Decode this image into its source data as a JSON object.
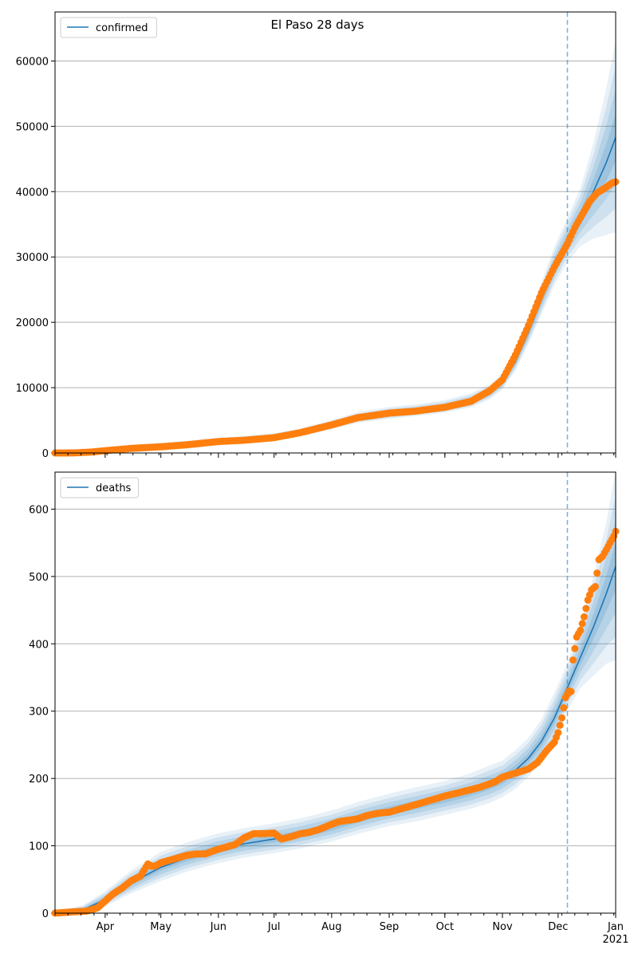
{
  "title": "El Paso 28 days",
  "colors": {
    "model_line": "#1f77b4",
    "band": "#1f77b4",
    "observed": "#ff7f0e",
    "grid": "#b0b0b0",
    "forecast_line": "#1f77b4"
  },
  "chart_data": [
    {
      "type": "line",
      "name": "confirmed",
      "legend": "confirmed",
      "legend_position": "top-left",
      "grid": "y",
      "x_range": [
        "2020-03-05",
        "2021-01-01"
      ],
      "ylim": [
        0,
        67500
      ],
      "yticks": [
        0,
        10000,
        20000,
        30000,
        40000,
        50000,
        60000
      ],
      "forecast_start": "2020-12-06",
      "model": {
        "x": [
          "2020-03-05",
          "2020-03-20",
          "2020-04-01",
          "2020-04-15",
          "2020-05-01",
          "2020-05-15",
          "2020-06-01",
          "2020-06-15",
          "2020-07-01",
          "2020-07-15",
          "2020-08-01",
          "2020-08-15",
          "2020-09-01",
          "2020-09-15",
          "2020-10-01",
          "2020-10-15",
          "2020-10-25",
          "2020-11-01",
          "2020-11-08",
          "2020-11-15",
          "2020-11-22",
          "2020-11-29",
          "2020-12-06",
          "2020-12-13",
          "2020-12-20",
          "2020-12-27",
          "2021-01-01"
        ],
        "y": [
          0,
          150,
          400,
          700,
          1000,
          1300,
          1700,
          2000,
          2400,
          3000,
          4200,
          5300,
          6000,
          6400,
          7000,
          7900,
          9200,
          10800,
          14000,
          18500,
          23500,
          28500,
          32500,
          36000,
          40000,
          44500,
          48300
        ],
        "band_rel": [
          0.5,
          0.5,
          0.4,
          0.35,
          0.3,
          0.25,
          0.2,
          0.18,
          0.16,
          0.15,
          0.14,
          0.13,
          0.13,
          0.12,
          0.12,
          0.12,
          0.11,
          0.1,
          0.1,
          0.1,
          0.1,
          0.1,
          0.1,
          0.12,
          0.18,
          0.25,
          0.3
        ]
      },
      "observed": {
        "x": [
          "2020-03-05",
          "2020-03-15",
          "2020-03-25",
          "2020-04-01",
          "2020-04-15",
          "2020-05-01",
          "2020-05-15",
          "2020-06-01",
          "2020-06-15",
          "2020-07-01",
          "2020-07-15",
          "2020-08-01",
          "2020-08-15",
          "2020-09-01",
          "2020-09-15",
          "2020-10-01",
          "2020-10-15",
          "2020-10-25",
          "2020-11-01",
          "2020-11-08",
          "2020-11-15",
          "2020-11-22",
          "2020-11-29",
          "2020-12-03",
          "2020-12-06",
          "2020-12-10",
          "2020-12-14",
          "2020-12-18",
          "2020-12-22",
          "2020-12-26",
          "2020-12-30",
          "2021-01-01"
        ],
        "y": [
          0,
          10,
          150,
          350,
          700,
          950,
          1250,
          1750,
          1950,
          2350,
          3100,
          4300,
          5400,
          6100,
          6400,
          7000,
          7900,
          9500,
          11200,
          15000,
          19500,
          24500,
          28500,
          30500,
          32000,
          34500,
          36500,
          38500,
          39800,
          40500,
          41300,
          41500
        ]
      }
    },
    {
      "type": "line",
      "name": "deaths",
      "legend": "deaths",
      "legend_position": "top-left",
      "grid": "y",
      "x_range": [
        "2020-03-05",
        "2021-01-01"
      ],
      "ylim": [
        0,
        655
      ],
      "yticks": [
        0,
        100,
        200,
        300,
        400,
        500,
        600
      ],
      "forecast_start": "2020-12-06",
      "model": {
        "x": [
          "2020-03-05",
          "2020-03-20",
          "2020-04-01",
          "2020-04-15",
          "2020-05-01",
          "2020-05-15",
          "2020-06-01",
          "2020-06-15",
          "2020-07-01",
          "2020-07-15",
          "2020-08-01",
          "2020-08-15",
          "2020-09-01",
          "2020-09-15",
          "2020-10-01",
          "2020-10-15",
          "2020-10-25",
          "2020-11-01",
          "2020-11-08",
          "2020-11-15",
          "2020-11-22",
          "2020-11-29",
          "2020-12-06",
          "2020-12-13",
          "2020-12-20",
          "2020-12-27",
          "2021-01-01"
        ],
        "y": [
          0,
          5,
          20,
          45,
          68,
          82,
          95,
          103,
          110,
          117,
          128,
          140,
          152,
          160,
          170,
          180,
          190,
          198,
          212,
          230,
          255,
          290,
          335,
          380,
          425,
          475,
          515
        ],
        "band_rel": [
          1.0,
          0.8,
          0.5,
          0.35,
          0.3,
          0.25,
          0.22,
          0.2,
          0.19,
          0.18,
          0.17,
          0.16,
          0.15,
          0.15,
          0.14,
          0.14,
          0.14,
          0.13,
          0.13,
          0.12,
          0.12,
          0.12,
          0.1,
          0.12,
          0.17,
          0.22,
          0.27
        ]
      },
      "observed": {
        "x": [
          "2020-03-05",
          "2020-03-15",
          "2020-03-22",
          "2020-03-28",
          "2020-04-01",
          "2020-04-05",
          "2020-04-10",
          "2020-04-15",
          "2020-04-20",
          "2020-04-24",
          "2020-04-26",
          "2020-04-28",
          "2020-05-01",
          "2020-05-05",
          "2020-05-10",
          "2020-05-15",
          "2020-05-20",
          "2020-05-25",
          "2020-06-01",
          "2020-06-05",
          "2020-06-10",
          "2020-06-15",
          "2020-06-20",
          "2020-06-25",
          "2020-07-01",
          "2020-07-05",
          "2020-07-08",
          "2020-07-12",
          "2020-07-15",
          "2020-07-20",
          "2020-07-25",
          "2020-08-01",
          "2020-08-05",
          "2020-08-10",
          "2020-08-15",
          "2020-08-20",
          "2020-08-25",
          "2020-09-01",
          "2020-09-10",
          "2020-09-20",
          "2020-10-01",
          "2020-10-10",
          "2020-10-20",
          "2020-10-28",
          "2020-11-01",
          "2020-11-08",
          "2020-11-15",
          "2020-11-20",
          "2020-11-25",
          "2020-11-29",
          "2020-12-01",
          "2020-12-03",
          "2020-12-05",
          "2020-12-07",
          "2020-12-08",
          "2020-12-09",
          "2020-12-11",
          "2020-12-13",
          "2020-12-15",
          "2020-12-17",
          "2020-12-19",
          "2020-12-21",
          "2020-12-23",
          "2020-12-25",
          "2020-12-27",
          "2020-12-29",
          "2020-12-31",
          "2021-01-01"
        ],
        "y": [
          0,
          2,
          3,
          8,
          18,
          28,
          37,
          48,
          55,
          73,
          70,
          70,
          75,
          78,
          82,
          86,
          88,
          88,
          95,
          98,
          102,
          112,
          118,
          118,
          119,
          110,
          112,
          115,
          118,
          120,
          124,
          132,
          136,
          138,
          140,
          145,
          148,
          150,
          157,
          165,
          174,
          180,
          187,
          195,
          202,
          208,
          214,
          224,
          242,
          254,
          268,
          290,
          320,
          330,
          329,
          376,
          410,
          420,
          440,
          465,
          480,
          485,
          525,
          530,
          540,
          550,
          560,
          567
        ]
      }
    }
  ]
}
